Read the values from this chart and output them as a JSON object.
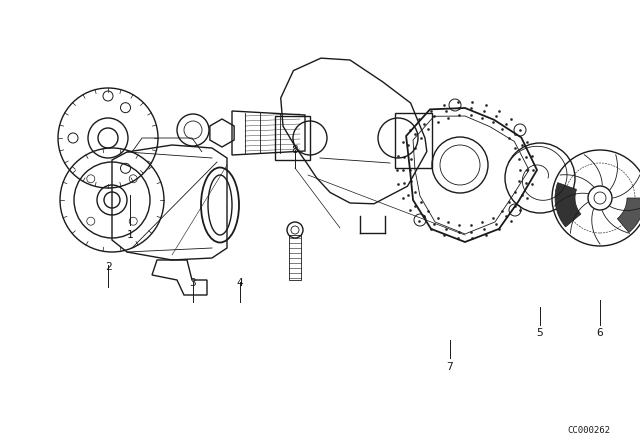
{
  "background_color": "#ffffff",
  "diagram_color": "#1a1a1a",
  "watermark": "CC000262",
  "part_labels": [
    "1",
    "2",
    "3",
    "4",
    "5",
    "6",
    "7",
    "8"
  ],
  "figsize": [
    6.4,
    4.48
  ],
  "dpi": 100,
  "xlim": [
    0,
    640
  ],
  "ylim": [
    0,
    448
  ]
}
